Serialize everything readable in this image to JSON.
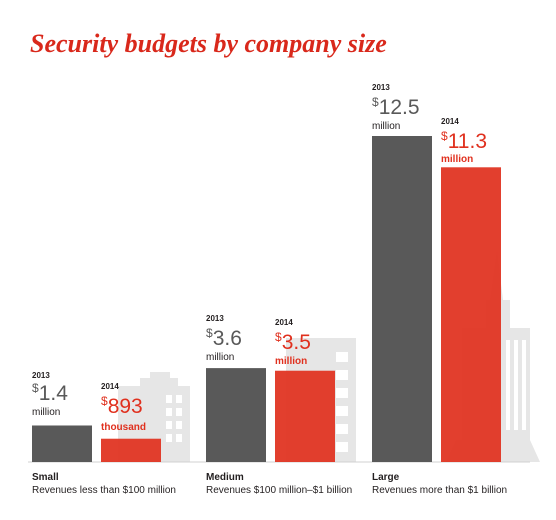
{
  "colors": {
    "y2013": "#595959",
    "y2014": "#e0301e",
    "title": "#d9281b",
    "building": "#e6e6e6",
    "text": "#231f20"
  },
  "chart_data": {
    "type": "bar",
    "title": "Security budgets by company size",
    "unit": "$ million",
    "series": [
      {
        "name": "2013",
        "values": [
          1.4,
          3.6,
          12.5
        ]
      },
      {
        "name": "2014",
        "values": [
          0.893,
          3.5,
          11.3
        ]
      }
    ],
    "groups": [
      {
        "category": "Small",
        "description": "Revenues less than $100 million",
        "bars": [
          {
            "year": "2013",
            "currency": "$",
            "amount": "1.4",
            "unit": "million",
            "value": 1.4
          },
          {
            "year": "2014",
            "currency": "$",
            "amount": "893",
            "unit": "thousand",
            "value": 0.893
          }
        ]
      },
      {
        "category": "Medium",
        "description": "Revenues $100 million–$1 billion",
        "bars": [
          {
            "year": "2013",
            "currency": "$",
            "amount": "3.6",
            "unit": "million",
            "value": 3.6
          },
          {
            "year": "2014",
            "currency": "$",
            "amount": "3.5",
            "unit": "million",
            "value": 3.5
          }
        ]
      },
      {
        "category": "Large",
        "description": "Revenues more than $1 billion",
        "bars": [
          {
            "year": "2013",
            "currency": "$",
            "amount": "12.5",
            "unit": "million",
            "value": 12.5
          },
          {
            "year": "2014",
            "currency": "$",
            "amount": "11.3",
            "unit": "million",
            "value": 11.3
          }
        ]
      }
    ]
  }
}
